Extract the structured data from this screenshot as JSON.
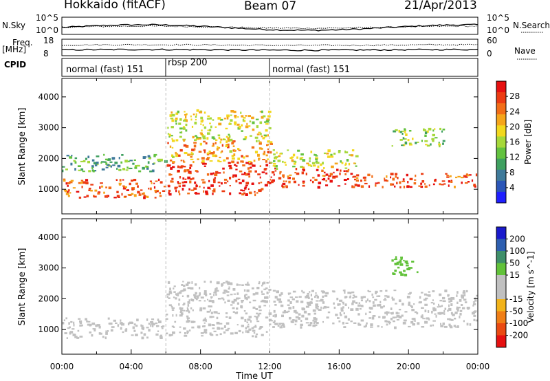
{
  "header": {
    "title": "Hokkaido (fitACF)",
    "beam": "Beam 07",
    "date": "21/Apr/2013"
  },
  "nsky_panel": {
    "left_label": "N.Sky",
    "right_label": "N.Search",
    "left_ticks": [
      "10^5",
      "10^0"
    ],
    "right_ticks": [
      "10^5",
      "10^0"
    ]
  },
  "freq_panel": {
    "left_label": "Freq.",
    "left_unit": "[MHz]",
    "right_label": "Nave",
    "left_ticks": [
      "18",
      "8"
    ],
    "right_ticks": [
      "60",
      "0"
    ]
  },
  "cpid": {
    "label": "CPID",
    "segments": [
      {
        "name": "normal (fast) 151",
        "start": 0,
        "end": 6
      },
      {
        "name": "rbsp 200",
        "start": 6,
        "end": 12
      },
      {
        "name": "normal (fast) 151",
        "start": 12,
        "end": 24
      }
    ]
  },
  "chart_data": [
    {
      "type": "heatmap",
      "title": "",
      "xlabel": "Time UT",
      "ylabel": "Slant Range [km]",
      "xlim": [
        0,
        24
      ],
      "ylim": [
        200,
        4600
      ],
      "xticks": [
        "00:00",
        "04:00",
        "08:00",
        "12:00",
        "16:00",
        "20:00",
        "00:00"
      ],
      "yticks": [
        "1000",
        "2000",
        "3000",
        "4000"
      ],
      "colorbar": {
        "label": "Power [dB]",
        "ticks": [
          "4",
          "8",
          "12",
          "16",
          "20",
          "24",
          "28"
        ],
        "range": [
          0,
          32
        ],
        "colors": [
          "#1f1fff",
          "#2b56b8",
          "#3f7a9a",
          "#3fa060",
          "#63c23f",
          "#a6d83a",
          "#f2d81e",
          "#f5a51b",
          "#f26d17",
          "#ec3b12",
          "#e61010"
        ]
      },
      "bands": [
        {
          "t": [
            0,
            6
          ],
          "r": [
            750,
            1350
          ],
          "level": 26
        },
        {
          "t": [
            0,
            6
          ],
          "r": [
            1600,
            2150
          ],
          "level": 12
        },
        {
          "t": [
            6,
            12
          ],
          "r": [
            850,
            1900
          ],
          "level": 29
        },
        {
          "t": [
            6,
            12
          ],
          "r": [
            1900,
            2600
          ],
          "level": 22
        },
        {
          "t": [
            6,
            12
          ],
          "r": [
            2600,
            3600
          ],
          "level": 18
        },
        {
          "t": [
            12,
            16.5
          ],
          "r": [
            1100,
            1700
          ],
          "level": 28
        },
        {
          "t": [
            12,
            17
          ],
          "r": [
            1700,
            2300
          ],
          "level": 17
        },
        {
          "t": [
            16.5,
            24
          ],
          "r": [
            1100,
            1550
          ],
          "level": 27
        },
        {
          "t": [
            19,
            22
          ],
          "r": [
            2400,
            3000
          ],
          "level": 14
        }
      ]
    },
    {
      "type": "heatmap",
      "title": "",
      "xlabel": "Time UT",
      "ylabel": "Slant Range [km]",
      "xlim": [
        0,
        24
      ],
      "ylim": [
        200,
        4600
      ],
      "xticks": [
        "00:00",
        "04:00",
        "08:00",
        "12:00",
        "16:00",
        "20:00",
        "00:00"
      ],
      "yticks": [
        "1000",
        "2000",
        "3000",
        "4000"
      ],
      "colorbar": {
        "label": "Velocity [m s^-1]",
        "ticks": [
          "200",
          "100",
          "50",
          "15",
          "-15",
          "-50",
          "-100",
          "-200"
        ],
        "range": [
          -250,
          250
        ],
        "colors": [
          "#1a1acc",
          "#2e5fb0",
          "#3f8f6a",
          "#62c23a",
          "#c0c0c0",
          "#c0c0c0",
          "#f2b31a",
          "#f07e16",
          "#ea4a12",
          "#e61010"
        ]
      },
      "bands": [
        {
          "t": [
            0,
            6
          ],
          "r": [
            750,
            1400
          ],
          "level": 0
        },
        {
          "t": [
            6,
            12
          ],
          "r": [
            800,
            2600
          ],
          "level": -20
        },
        {
          "t": [
            12,
            24
          ],
          "r": [
            1100,
            2300
          ],
          "level": 0
        },
        {
          "t": [
            19,
            20.5
          ],
          "r": [
            2800,
            3400
          ],
          "level": 70
        }
      ]
    }
  ]
}
